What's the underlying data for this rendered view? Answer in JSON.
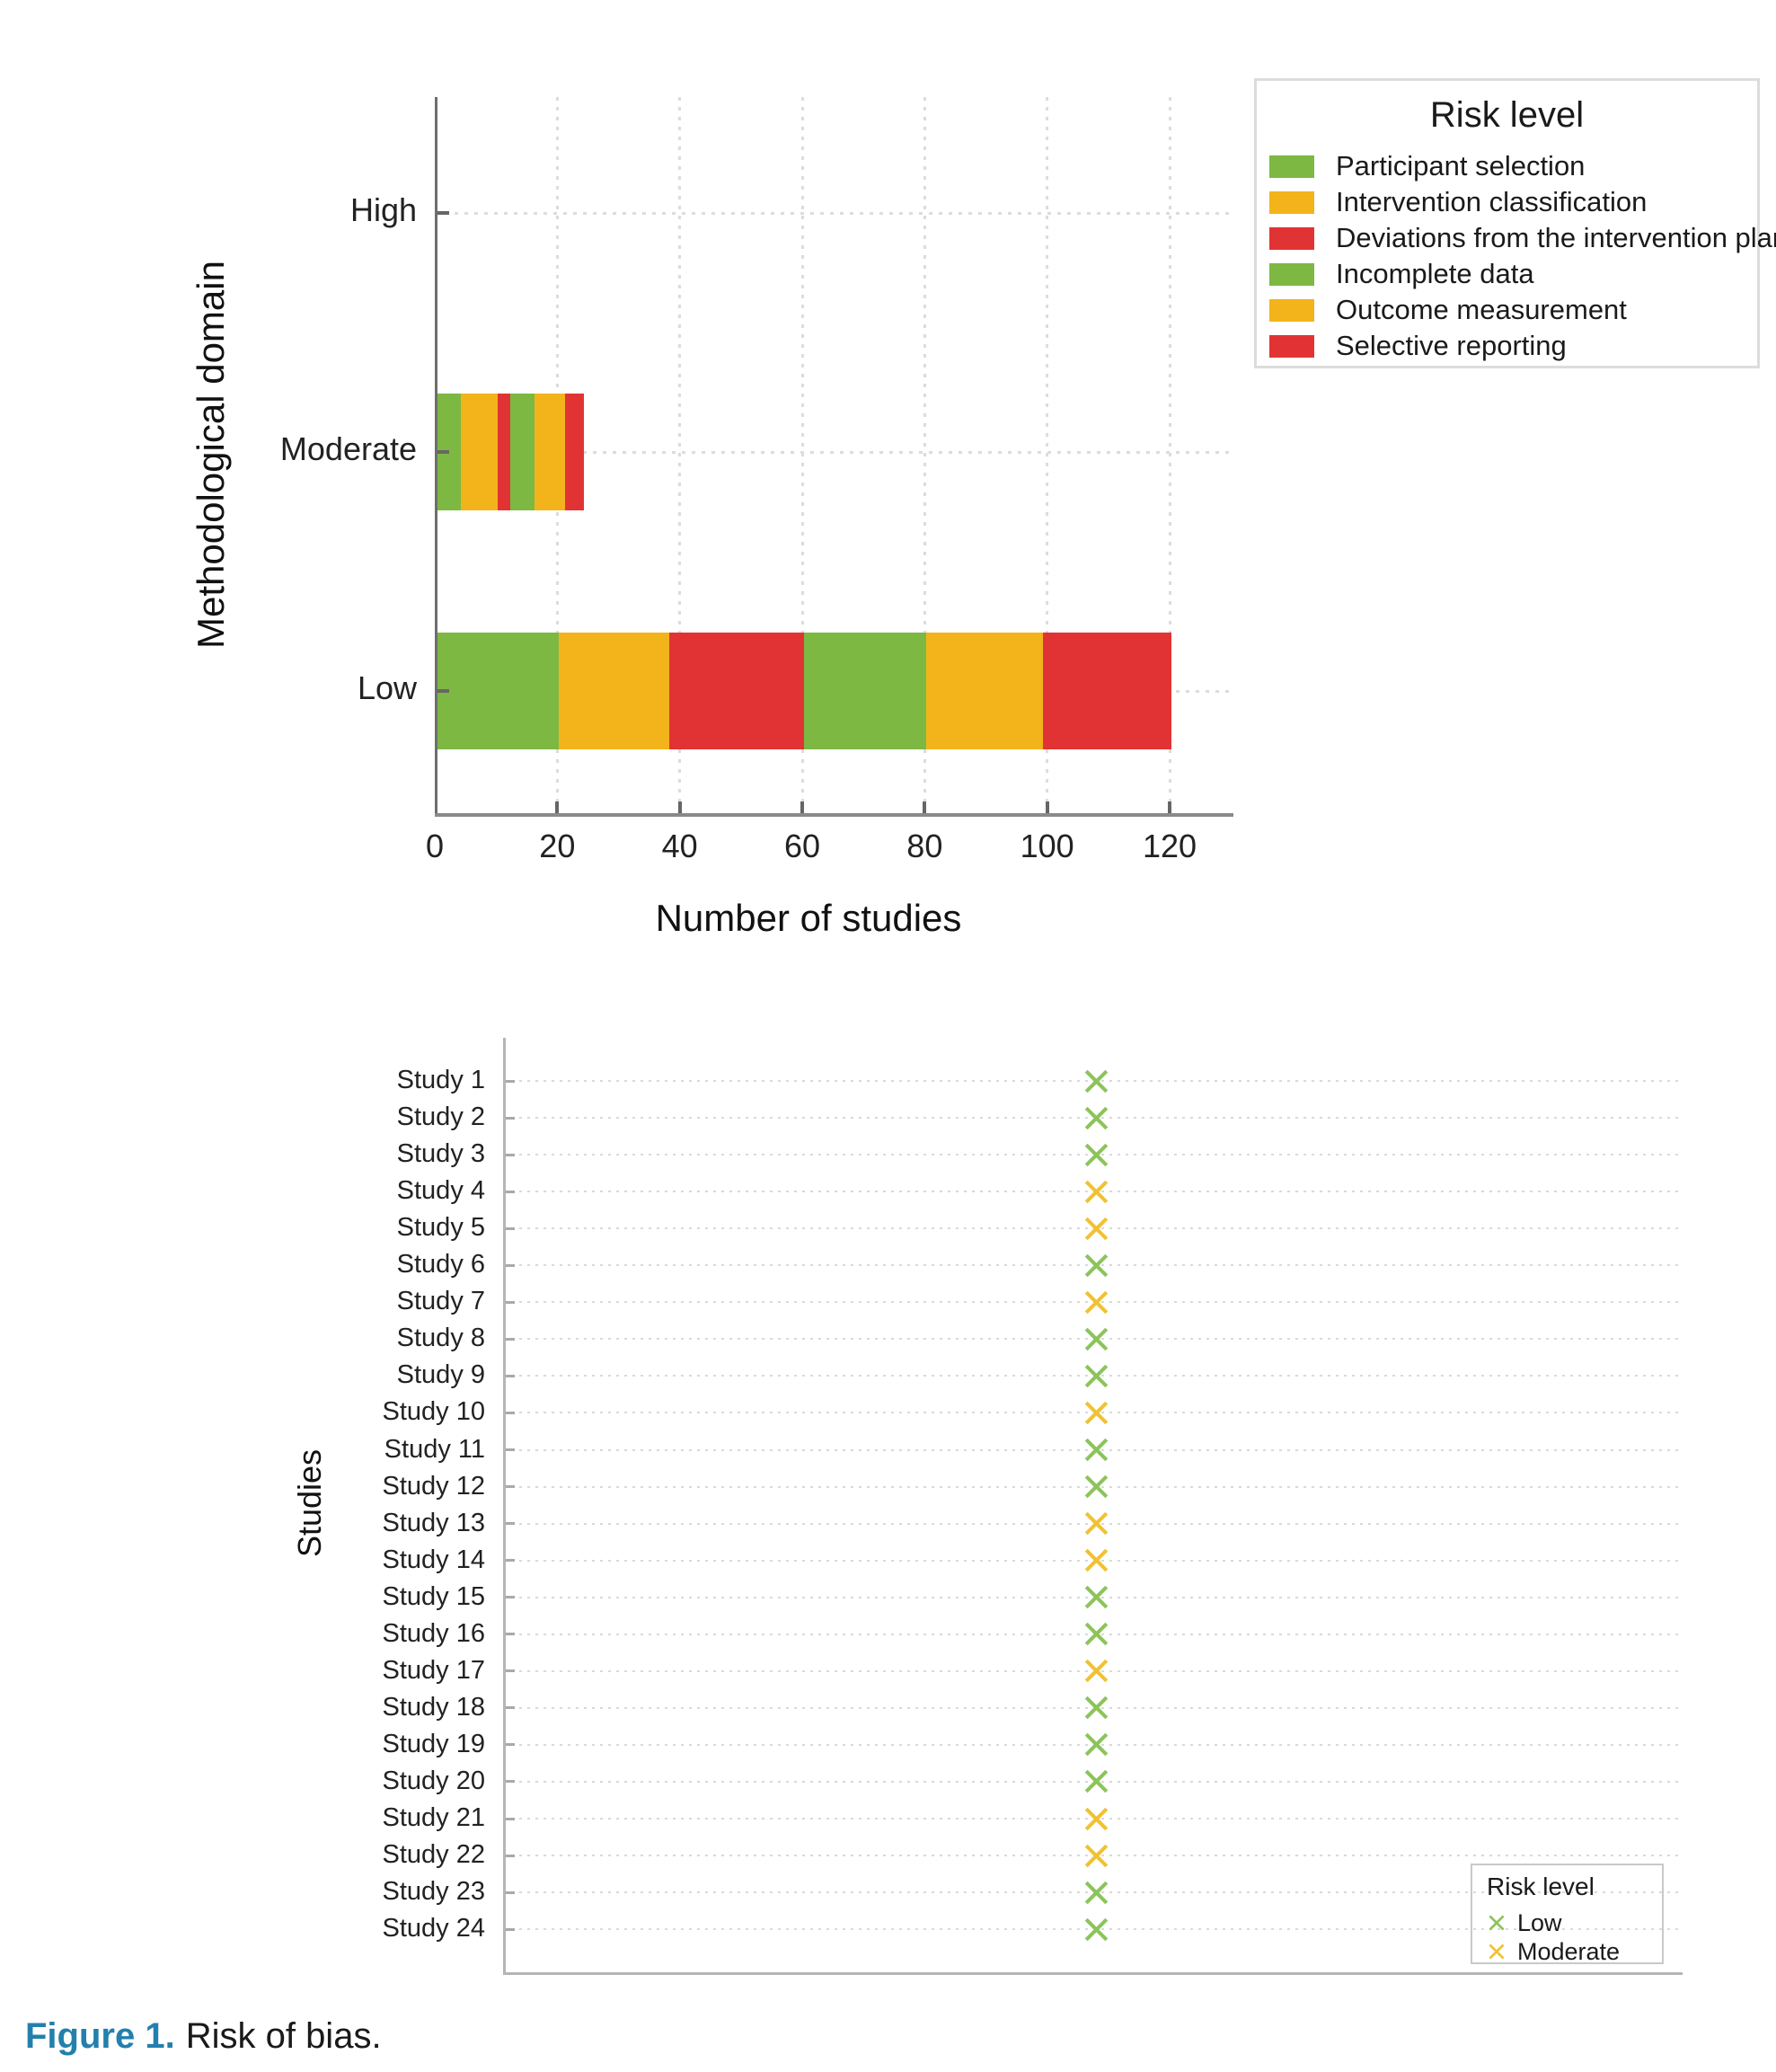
{
  "caption": {
    "label": "Figure 1.",
    "text": "Risk of bias."
  },
  "colors": {
    "bar_green": "#7db843",
    "bar_amber": "#f3b41b",
    "bar_red": "#e23334",
    "marker_low_green": "#8cc45a",
    "marker_moderate_yellow": "#f0c233",
    "axis_dark": "#777777",
    "axis_light": "#b5b5b5",
    "gridline": "#dcdcdc",
    "figure_label_blue": "#2380ad"
  },
  "chart_data": [
    {
      "type": "bar",
      "orientation": "horizontal",
      "stacked": true,
      "xlabel": "Number of studies",
      "ylabel": "Methodological domain",
      "categories": [
        "High",
        "Moderate",
        "Low"
      ],
      "xlim": [
        0,
        130
      ],
      "xticks": [
        0,
        20,
        40,
        60,
        80,
        100,
        120
      ],
      "grid": true,
      "legend": {
        "title": "Risk level",
        "position": "outside-top-right"
      },
      "series": [
        {
          "name": "Participant selection",
          "color": "#7db843",
          "values": [
            0,
            4,
            20
          ]
        },
        {
          "name": "Intervention classification",
          "color": "#f3b41b",
          "values": [
            0,
            6,
            18
          ]
        },
        {
          "name": "Deviations from the intervention plan",
          "color": "#e23334",
          "values": [
            0,
            2,
            22
          ]
        },
        {
          "name": "Incomplete data",
          "color": "#7db843",
          "values": [
            0,
            4,
            20
          ]
        },
        {
          "name": "Outcome measurement",
          "color": "#f3b41b",
          "values": [
            0,
            5,
            19
          ]
        },
        {
          "name": "Selective reporting",
          "color": "#e23334",
          "values": [
            0,
            3,
            21
          ]
        }
      ]
    },
    {
      "type": "scatter",
      "marker": "x",
      "xlabel": "",
      "ylabel": "Studies",
      "grid": true,
      "legend": {
        "title": "Risk level",
        "position": "inside-bottom-right",
        "items": [
          {
            "label": "Low",
            "color": "#8cc45a"
          },
          {
            "label": "Moderate",
            "color": "#f0c233"
          }
        ]
      },
      "points": [
        {
          "label": "Study 1",
          "risk": "Low"
        },
        {
          "label": "Study 2",
          "risk": "Low"
        },
        {
          "label": "Study 3",
          "risk": "Low"
        },
        {
          "label": "Study 4",
          "risk": "Moderate"
        },
        {
          "label": "Study 5",
          "risk": "Moderate"
        },
        {
          "label": "Study 6",
          "risk": "Low"
        },
        {
          "label": "Study 7",
          "risk": "Moderate"
        },
        {
          "label": "Study 8",
          "risk": "Low"
        },
        {
          "label": "Study 9",
          "risk": "Low"
        },
        {
          "label": "Study 10",
          "risk": "Moderate"
        },
        {
          "label": "Study 11",
          "risk": "Low"
        },
        {
          "label": "Study 12",
          "risk": "Low"
        },
        {
          "label": "Study 13",
          "risk": "Moderate"
        },
        {
          "label": "Study 14",
          "risk": "Moderate"
        },
        {
          "label": "Study 15",
          "risk": "Low"
        },
        {
          "label": "Study 16",
          "risk": "Low"
        },
        {
          "label": "Study 17",
          "risk": "Moderate"
        },
        {
          "label": "Study 18",
          "risk": "Low"
        },
        {
          "label": "Study 19",
          "risk": "Low"
        },
        {
          "label": "Study 20",
          "risk": "Low"
        },
        {
          "label": "Study 21",
          "risk": "Moderate"
        },
        {
          "label": "Study 22",
          "risk": "Moderate"
        },
        {
          "label": "Study 23",
          "risk": "Low"
        },
        {
          "label": "Study 24",
          "risk": "Low"
        }
      ]
    }
  ]
}
